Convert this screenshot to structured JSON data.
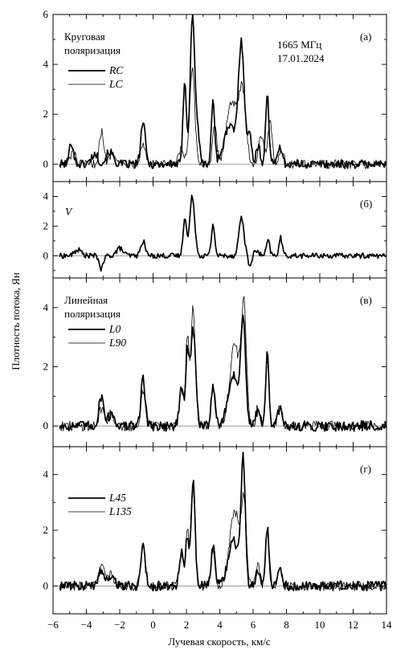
{
  "x_axis": {
    "label": "Лучевая скорость, км/с",
    "range": [
      -6,
      14
    ],
    "ticks": [
      -6,
      -4,
      -2,
      0,
      2,
      4,
      6,
      8,
      10,
      12,
      14
    ],
    "tick_labels": [
      "−6",
      "−4",
      "−2",
      "0",
      "2",
      "4",
      "6",
      "8",
      "10",
      "12",
      "14"
    ]
  },
  "y_axis": {
    "label": "Плотность потока, Ян"
  },
  "chart_data": [
    {
      "type": "line",
      "panel_label": "(а)",
      "title_lines": [
        "Круговая",
        "поляризация"
      ],
      "annotation_lines": [
        "1665 МГц",
        "17.01.2024"
      ],
      "ylim": [
        -0.7,
        6
      ],
      "yticks": [
        0,
        2,
        4,
        6
      ],
      "legend_position": "top-left",
      "series": [
        {
          "name": "RC",
          "line": "thick",
          "peaks": [
            [
              -4.9,
              0.9,
              0.12
            ],
            [
              -3.5,
              0.4,
              0.2
            ],
            [
              -2.6,
              0.5,
              0.2
            ],
            [
              -0.6,
              1.7,
              0.13
            ],
            [
              1.9,
              3.4,
              0.1
            ],
            [
              2.35,
              5.5,
              0.13
            ],
            [
              2.6,
              1.6,
              0.15
            ],
            [
              3.6,
              2.5,
              0.1
            ],
            [
              4.6,
              1.5,
              0.35
            ],
            [
              5.3,
              4.7,
              0.18
            ],
            [
              5.8,
              1.1,
              0.12
            ],
            [
              6.3,
              0.7,
              0.12
            ],
            [
              6.85,
              2.8,
              0.1
            ],
            [
              7.6,
              0.8,
              0.12
            ]
          ]
        },
        {
          "name": "LC",
          "line": "thin",
          "peaks": [
            [
              -4.8,
              0.5,
              0.15
            ],
            [
              -3.1,
              1.3,
              0.13
            ],
            [
              -2.4,
              0.5,
              0.2
            ],
            [
              -0.6,
              0.8,
              0.15
            ],
            [
              1.7,
              0.6,
              0.15
            ],
            [
              2.35,
              3.8,
              0.15
            ],
            [
              3.7,
              1.5,
              0.12
            ],
            [
              4.7,
              2.5,
              0.3
            ],
            [
              5.35,
              2.9,
              0.22
            ],
            [
              6.5,
              1.2,
              0.15
            ],
            [
              7.0,
              1.7,
              0.13
            ],
            [
              7.7,
              0.6,
              0.15
            ]
          ]
        }
      ]
    },
    {
      "type": "line",
      "panel_label": "(б)",
      "title_lines": [],
      "annotation_lines": [],
      "ylim": [
        -1.5,
        5
      ],
      "yticks": [
        0,
        2,
        4
      ],
      "series": [
        {
          "name": "V",
          "line": "thick",
          "peaks": [
            [
              -4.5,
              0.4,
              0.2
            ],
            [
              -3.1,
              -0.9,
              0.12
            ],
            [
              -2.0,
              0.5,
              0.2
            ],
            [
              -0.6,
              1.0,
              0.13
            ],
            [
              1.9,
              2.6,
              0.1
            ],
            [
              2.35,
              4.0,
              0.15
            ],
            [
              3.6,
              2.1,
              0.1
            ],
            [
              5.3,
              2.6,
              0.15
            ],
            [
              5.8,
              -0.7,
              0.1
            ],
            [
              6.2,
              0.3,
              0.15
            ],
            [
              6.9,
              1.0,
              0.1
            ],
            [
              7.65,
              1.2,
              0.1
            ]
          ]
        }
      ]
    },
    {
      "type": "line",
      "panel_label": "(в)",
      "title_lines": [
        "Линейная",
        "поляризация"
      ],
      "annotation_lines": [],
      "ylim": [
        -0.7,
        5
      ],
      "yticks": [
        0,
        2,
        4
      ],
      "legend_position": "top-left",
      "series": [
        {
          "name": "L0",
          "line": "thick",
          "peaks": [
            [
              -3.1,
              1.0,
              0.15
            ],
            [
              -2.5,
              0.4,
              0.2
            ],
            [
              -0.6,
              1.6,
              0.13
            ],
            [
              1.7,
              1.3,
              0.12
            ],
            [
              2.05,
              2.4,
              0.1
            ],
            [
              2.4,
              3.3,
              0.15
            ],
            [
              3.6,
              1.4,
              0.12
            ],
            [
              4.8,
              1.7,
              0.3
            ],
            [
              5.4,
              3.4,
              0.15
            ],
            [
              6.3,
              0.6,
              0.12
            ],
            [
              6.85,
              2.4,
              0.1
            ],
            [
              7.6,
              0.6,
              0.12
            ]
          ]
        },
        {
          "name": "L90",
          "line": "thin",
          "peaks": [
            [
              -3.1,
              0.6,
              0.15
            ],
            [
              -2.5,
              0.4,
              0.2
            ],
            [
              -0.6,
              1.2,
              0.13
            ],
            [
              1.7,
              1.3,
              0.12
            ],
            [
              2.05,
              3.0,
              0.1
            ],
            [
              2.4,
              4.0,
              0.13
            ],
            [
              3.6,
              1.3,
              0.12
            ],
            [
              4.9,
              2.7,
              0.3
            ],
            [
              5.45,
              3.8,
              0.15
            ],
            [
              6.3,
              0.7,
              0.12
            ],
            [
              6.85,
              2.2,
              0.1
            ],
            [
              7.6,
              0.7,
              0.12
            ]
          ]
        }
      ]
    },
    {
      "type": "line",
      "panel_label": "(г)",
      "title_lines": [],
      "annotation_lines": [],
      "ylim": [
        -1,
        5
      ],
      "yticks": [
        0,
        2,
        4
      ],
      "legend_position": "top-left",
      "series": [
        {
          "name": "L45",
          "line": "thick",
          "peaks": [
            [
              -3.1,
              0.6,
              0.15
            ],
            [
              -2.5,
              0.4,
              0.2
            ],
            [
              -0.6,
              1.5,
              0.13
            ],
            [
              1.7,
              1.2,
              0.12
            ],
            [
              2.05,
              1.8,
              0.1
            ],
            [
              2.4,
              3.8,
              0.12
            ],
            [
              3.6,
              1.4,
              0.12
            ],
            [
              4.8,
              1.7,
              0.3
            ],
            [
              5.4,
              4.4,
              0.13
            ],
            [
              6.3,
              0.6,
              0.12
            ],
            [
              6.85,
              2.1,
              0.1
            ],
            [
              7.6,
              0.6,
              0.12
            ]
          ]
        },
        {
          "name": "L135",
          "line": "thin",
          "peaks": [
            [
              -3.1,
              0.9,
              0.15
            ],
            [
              -2.5,
              0.4,
              0.2
            ],
            [
              -0.6,
              1.4,
              0.13
            ],
            [
              1.7,
              1.2,
              0.12
            ],
            [
              2.05,
              2.0,
              0.1
            ],
            [
              2.4,
              3.7,
              0.12
            ],
            [
              3.6,
              1.3,
              0.12
            ],
            [
              4.9,
              2.7,
              0.3
            ],
            [
              5.45,
              2.8,
              0.15
            ],
            [
              6.3,
              0.7,
              0.12
            ],
            [
              6.85,
              1.9,
              0.1
            ],
            [
              7.6,
              0.7,
              0.12
            ]
          ]
        }
      ]
    }
  ]
}
